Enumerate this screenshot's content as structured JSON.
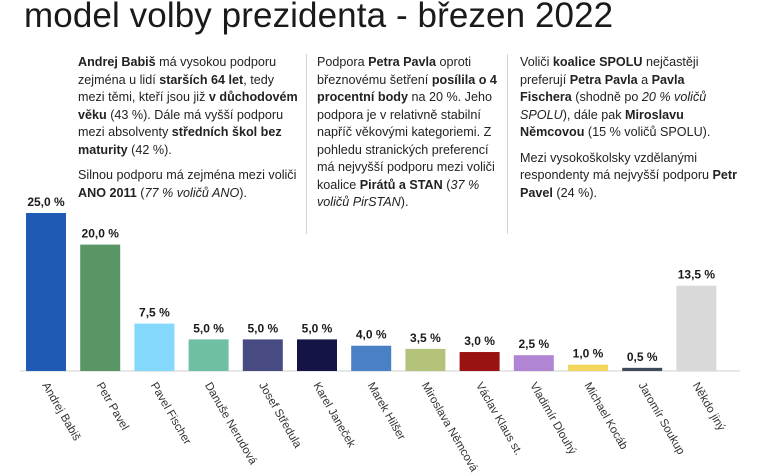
{
  "title": "model volby prezidenta - březen 2022",
  "notes": [
    {
      "paragraphs": [
        [
          {
            "t": "Andrej Babiš",
            "b": true
          },
          {
            "t": " má vysokou podporu zejména u lidí "
          },
          {
            "t": "starších 64 let",
            "b": true
          },
          {
            "t": ", tedy mezi těmi, kteří jsou již "
          },
          {
            "t": "v důchodovém věku",
            "b": true
          },
          {
            "t": " (43 %). Dále má vyšší podporu mezi absolventy "
          },
          {
            "t": "středních škol bez maturity",
            "b": true
          },
          {
            "t": " (42 %)."
          }
        ],
        [
          {
            "t": "Silnou podporu má zejména mezi voliči "
          },
          {
            "t": "ANO 2011",
            "b": true
          },
          {
            "t": " ("
          },
          {
            "t": "77 % voličů ANO",
            "i": true
          },
          {
            "t": ")."
          }
        ]
      ]
    },
    {
      "paragraphs": [
        [
          {
            "t": "Podpora "
          },
          {
            "t": "Petra Pavla",
            "b": true
          },
          {
            "t": " oproti březnovému šetření "
          },
          {
            "t": "posílila o 4 procentní body",
            "b": true
          },
          {
            "t": " na 20 %. Jeho podpora je v relativně stabilní napříč věkovými kategoriemi. Z pohledu stranických preferencí má nejvyšší podporu mezi voliči koalice "
          },
          {
            "t": "Pirátů a STAN",
            "b": true
          },
          {
            "t": " ("
          },
          {
            "t": "37 % voličů PirSTAN",
            "i": true
          },
          {
            "t": ")."
          }
        ]
      ]
    },
    {
      "paragraphs": [
        [
          {
            "t": "Voliči "
          },
          {
            "t": "koalice SPOLU",
            "b": true
          },
          {
            "t": " nejčastěji preferují "
          },
          {
            "t": "Petra Pavla",
            "b": true
          },
          {
            "t": " a "
          },
          {
            "t": "Pavla Fischera",
            "b": true
          },
          {
            "t": " (shodně po "
          },
          {
            "t": "20 % voličů SPOLU",
            "i": true
          },
          {
            "t": "), dále pak "
          },
          {
            "t": "Miroslavu Němcovou",
            "b": true
          },
          {
            "t": " (15 % voličů SPOLU)."
          }
        ],
        [
          {
            "t": "Mezi vysokoškolsky vzdělanými respondenty má nejvyšší podporu "
          },
          {
            "t": "Petr Pavel",
            "b": true
          },
          {
            "t": " (24 %)."
          }
        ]
      ]
    }
  ],
  "chart_data": {
    "type": "bar",
    "title": "model volby prezidenta - březen 2022",
    "ylim": [
      0,
      25
    ],
    "categories": [
      "Andrej Babiš",
      "Petr Pavel",
      "Pavel Fischer",
      "Danuše Nerudová",
      "Josef Středula",
      "Karel Janeček",
      "Marek Hilšer",
      "Miroslava Němcová",
      "Václav Klaus st.",
      "Vladimír Dlouhý",
      "Michael Kocáb",
      "Jaromír Soukup",
      "Někdo jiný"
    ],
    "values": [
      25.0,
      20.0,
      7.5,
      5.0,
      5.0,
      5.0,
      4.0,
      3.5,
      3.0,
      2.5,
      1.0,
      0.5,
      13.5
    ],
    "value_labels": [
      "25,0 %",
      "20,0 %",
      "7,5 %",
      "5,0 %",
      "5,0 %",
      "5,0 %",
      "4,0 %",
      "3,5 %",
      "3,0 %",
      "2,5 %",
      "1,0 %",
      "0,5 %",
      "13,5 %"
    ],
    "colors": [
      "#1f5bb5",
      "#5a9566",
      "#84d8fb",
      "#6fbfa3",
      "#474b82",
      "#141446",
      "#4a80c5",
      "#b3c47a",
      "#9b1212",
      "#b085d3",
      "#f3d65c",
      "#3d4a5c",
      "#d9d9d9"
    ],
    "grid": false,
    "legend": "none"
  }
}
